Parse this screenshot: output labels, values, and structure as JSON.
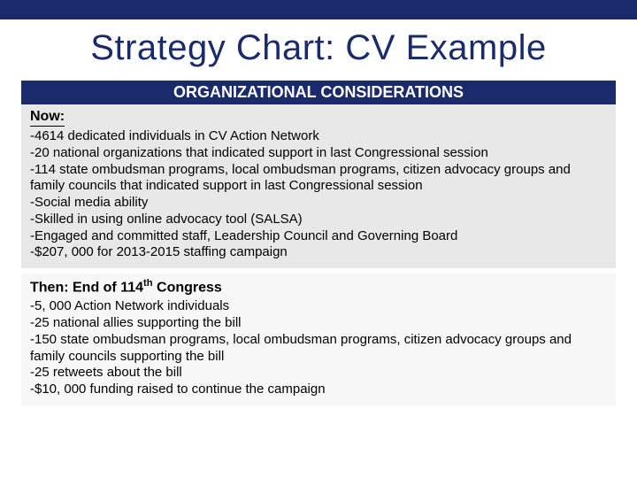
{
  "colors": {
    "brand_navy": "#1b2a6b",
    "bg_now": "#e8e8e8",
    "bg_then": "#f7f7f7",
    "page_bg": "#ffffff",
    "text": "#000000"
  },
  "typography": {
    "title_fontsize": 40,
    "header_fontsize": 18,
    "body_fontsize": 15,
    "heading_fontsize": 16
  },
  "title": "Strategy Chart: CV Example",
  "section_header": "ORGANIZATIONAL CONSIDERATIONS",
  "now": {
    "heading": "Now:",
    "items": [
      "-4614 dedicated individuals in CV Action Network",
      "-20 national organizations that indicated support in last Congressional session",
      "-114 state ombudsman programs, local ombudsman programs, citizen advocacy groups and family councils that indicated support in last Congressional session",
      "-Social media ability",
      "-Skilled in using online advocacy tool (SALSA)",
      "-Engaged and committed staff, Leadership Council and Governing Board",
      "-$207, 000 for 2013-2015 staffing campaign"
    ]
  },
  "then": {
    "heading_prefix": "Then: End of 114",
    "heading_suffix": " Congress",
    "heading_sup": "th",
    "items": [
      "-5, 000 Action Network individuals",
      "-25 national allies supporting the bill",
      "-150 state ombudsman programs, local ombudsman programs, citizen advocacy groups and family councils supporting the bill",
      "-25 retweets about the bill",
      "-$10, 000 funding raised to continue the campaign"
    ]
  }
}
